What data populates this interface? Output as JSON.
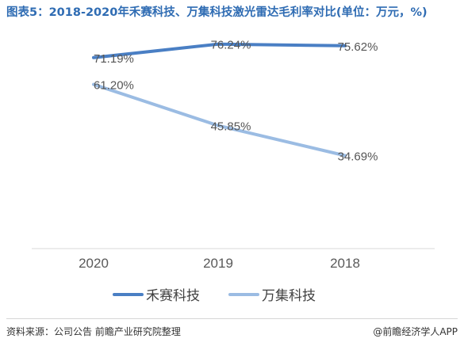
{
  "title": "图表5：2018-2020年禾赛科技、万集科技激光雷达毛利率对比(单位：万元，%)",
  "source": "资料来源：公司公告 前瞻产业研究院整理",
  "brand": "@前瞻经济学人APP",
  "chart_data": {
    "type": "line",
    "categories": [
      "2020",
      "2019",
      "2018"
    ],
    "series": [
      {
        "name": "禾赛科技",
        "values": [
          71.19,
          76.24,
          75.62
        ],
        "labels": [
          "71.19%",
          "76.24%",
          "75.62%"
        ],
        "color": "#4a7fc4"
      },
      {
        "name": "万集科技",
        "values": [
          61.2,
          45.85,
          34.69
        ],
        "labels": [
          "61.20%",
          "45.85%",
          "34.69%"
        ],
        "color": "#9bbce3"
      }
    ],
    "ylim": [
      0,
      85
    ],
    "grid": false,
    "legend_position": "bottom"
  }
}
